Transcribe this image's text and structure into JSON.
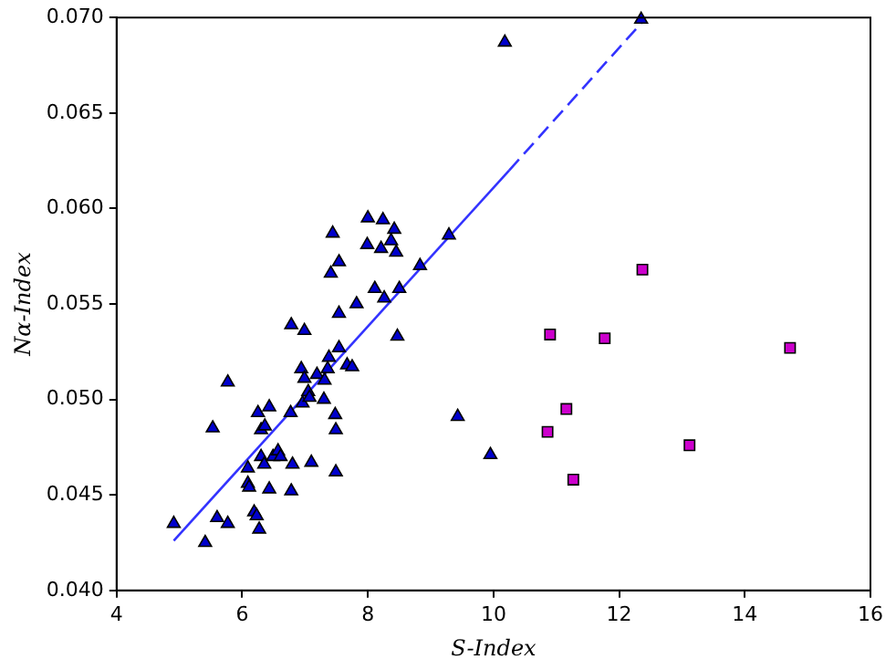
{
  "chart_data": {
    "type": "scatter",
    "xlabel": "S-Index",
    "ylabel": "Nα-Index",
    "xlim": [
      4,
      16
    ],
    "xticks": [
      4,
      6,
      8,
      10,
      12,
      14,
      16
    ],
    "ylim": [
      0.04,
      0.07
    ],
    "yticks": [
      {
        "value": 0.04,
        "label": "0.040"
      },
      {
        "value": 0.045,
        "label": "0.045"
      },
      {
        "value": 0.05,
        "label": "0.050"
      },
      {
        "value": 0.055,
        "label": "0.055"
      },
      {
        "value": 0.06,
        "label": "0.060"
      },
      {
        "value": 0.065,
        "label": "0.065"
      },
      {
        "value": 0.07,
        "label": "0.070"
      }
    ],
    "grid": false,
    "legend": false,
    "series": [
      {
        "type": "scatter",
        "marker": "triangle",
        "color": "#0000cc",
        "x": [
          4.91,
          5.41,
          5.6,
          5.77,
          5.53,
          5.77,
          6.09,
          6.09,
          6.11,
          6.19,
          6.23,
          6.27,
          6.25,
          6.3,
          6.36,
          6.3,
          6.35,
          6.43,
          6.43,
          6.49,
          6.57,
          6.61,
          6.77,
          6.8,
          6.78,
          6.78,
          6.99,
          7.1,
          6.94,
          6.99,
          6.96,
          7.05,
          7.07,
          7.19,
          7.31,
          7.3,
          7.36,
          7.38,
          7.54,
          7.48,
          7.49,
          7.49,
          7.54,
          7.41,
          7.54,
          7.44,
          7.67,
          7.75,
          7.82,
          7.99,
          8.0,
          8.11,
          8.24,
          8.21,
          8.26,
          8.37,
          8.42,
          8.45,
          8.5,
          8.47,
          8.83,
          9.29,
          9.43,
          9.95,
          10.18,
          12.35
        ],
        "values": [
          0.0435,
          0.0425,
          0.0438,
          0.0435,
          0.0485,
          0.0509,
          0.0464,
          0.0456,
          0.0454,
          0.0441,
          0.0439,
          0.0432,
          0.0493,
          0.0484,
          0.0486,
          0.047,
          0.0466,
          0.0453,
          0.0496,
          0.047,
          0.0473,
          0.047,
          0.0493,
          0.0466,
          0.0452,
          0.0539,
          0.0536,
          0.0467,
          0.0516,
          0.0511,
          0.0498,
          0.0504,
          0.0501,
          0.0513,
          0.051,
          0.05,
          0.0516,
          0.0522,
          0.0527,
          0.0492,
          0.0484,
          0.0462,
          0.0545,
          0.0566,
          0.0572,
          0.0587,
          0.0518,
          0.0517,
          0.055,
          0.0581,
          0.0595,
          0.0558,
          0.0594,
          0.0579,
          0.0553,
          0.0583,
          0.0589,
          0.0577,
          0.0558,
          0.0533,
          0.057,
          0.0586,
          0.0491,
          0.0471,
          0.0687,
          0.0699
        ]
      },
      {
        "type": "scatter",
        "marker": "square",
        "color": "#cc00cc",
        "x": [
          10.9,
          10.86,
          11.16,
          11.27,
          11.77,
          12.37,
          13.12,
          14.72
        ],
        "values": [
          0.0534,
          0.0483,
          0.0495,
          0.0458,
          0.0532,
          0.0568,
          0.0476,
          0.0527
        ]
      },
      {
        "type": "line",
        "line_style": "solid",
        "color": "#3333ff",
        "x": [
          4.91,
          10.25
        ],
        "values": [
          0.0426,
          0.062
        ]
      },
      {
        "type": "line",
        "line_style": "dashed",
        "color": "#3333ff",
        "x": [
          10.25,
          12.35
        ],
        "values": [
          0.062,
          0.0697
        ]
      }
    ]
  }
}
